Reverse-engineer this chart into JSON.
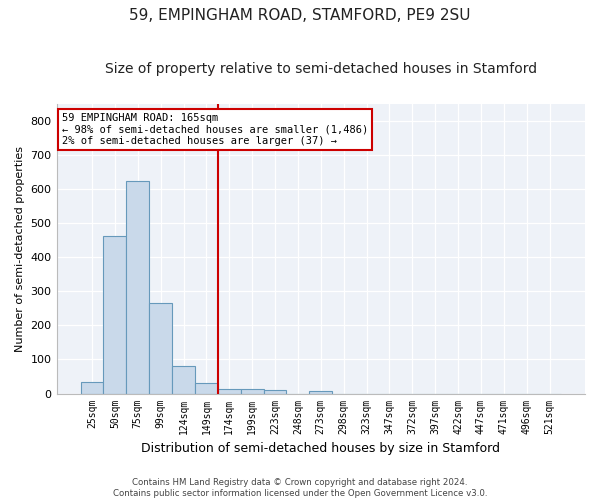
{
  "title": "59, EMPINGHAM ROAD, STAMFORD, PE9 2SU",
  "subtitle": "Size of property relative to semi-detached houses in Stamford",
  "xlabel": "Distribution of semi-detached houses by size in Stamford",
  "ylabel": "Number of semi-detached properties",
  "categories": [
    "25sqm",
    "50sqm",
    "75sqm",
    "99sqm",
    "124sqm",
    "149sqm",
    "174sqm",
    "199sqm",
    "223sqm",
    "248sqm",
    "273sqm",
    "298sqm",
    "323sqm",
    "347sqm",
    "372sqm",
    "397sqm",
    "422sqm",
    "447sqm",
    "471sqm",
    "496sqm",
    "521sqm"
  ],
  "values": [
    33,
    463,
    625,
    265,
    80,
    30,
    14,
    12,
    10,
    0,
    8,
    0,
    0,
    0,
    0,
    0,
    0,
    0,
    0,
    0,
    0
  ],
  "bar_color": "#c9d9ea",
  "bar_edge_color": "#6699bb",
  "annotation_text": "59 EMPINGHAM ROAD: 165sqm\n← 98% of semi-detached houses are smaller (1,486)\n2% of semi-detached houses are larger (37) →",
  "ylim": [
    0,
    850
  ],
  "yticks": [
    0,
    100,
    200,
    300,
    400,
    500,
    600,
    700,
    800
  ],
  "grid_color": "#d0d8e8",
  "footer": "Contains HM Land Registry data © Crown copyright and database right 2024.\nContains public sector information licensed under the Open Government Licence v3.0.",
  "title_fontsize": 11,
  "subtitle_fontsize": 10,
  "annotation_box_color": "#ffffff",
  "annotation_box_edge_color": "#cc0000",
  "vline_color": "#cc0000",
  "plot_bg_color": "#eef2f8"
}
